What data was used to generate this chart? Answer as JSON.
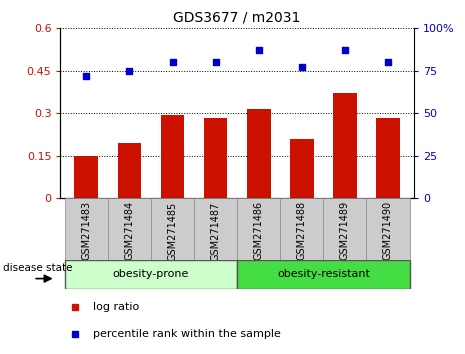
{
  "title": "GDS3677 / m2031",
  "categories": [
    "GSM271483",
    "GSM271484",
    "GSM271485",
    "GSM271487",
    "GSM271486",
    "GSM271488",
    "GSM271489",
    "GSM271490"
  ],
  "log_ratio": [
    0.148,
    0.195,
    0.295,
    0.285,
    0.315,
    0.21,
    0.37,
    0.285
  ],
  "percentile_rank": [
    72,
    75,
    80,
    80,
    87,
    77,
    87,
    80
  ],
  "group1_label": "obesity-prone",
  "group2_label": "obesity-resistant",
  "group1_color": "#ccffcc",
  "group2_color": "#44dd44",
  "bar_color": "#cc1100",
  "dot_color": "#0000cc",
  "tick_bg_color": "#cccccc",
  "ylim_left": [
    0,
    0.6
  ],
  "ylim_right": [
    0,
    100
  ],
  "yticks_left": [
    0,
    0.15,
    0.3,
    0.45,
    0.6
  ],
  "ytick_labels_left": [
    "0",
    "0.15",
    "0.3",
    "0.45",
    "0.6"
  ],
  "yticks_right": [
    0,
    25,
    50,
    75,
    100
  ],
  "ytick_labels_right": [
    "0",
    "25",
    "50",
    "75",
    "100%"
  ],
  "disease_state_label": "disease state",
  "legend_bar_label": "log ratio",
  "legend_dot_label": "percentile rank within the sample"
}
